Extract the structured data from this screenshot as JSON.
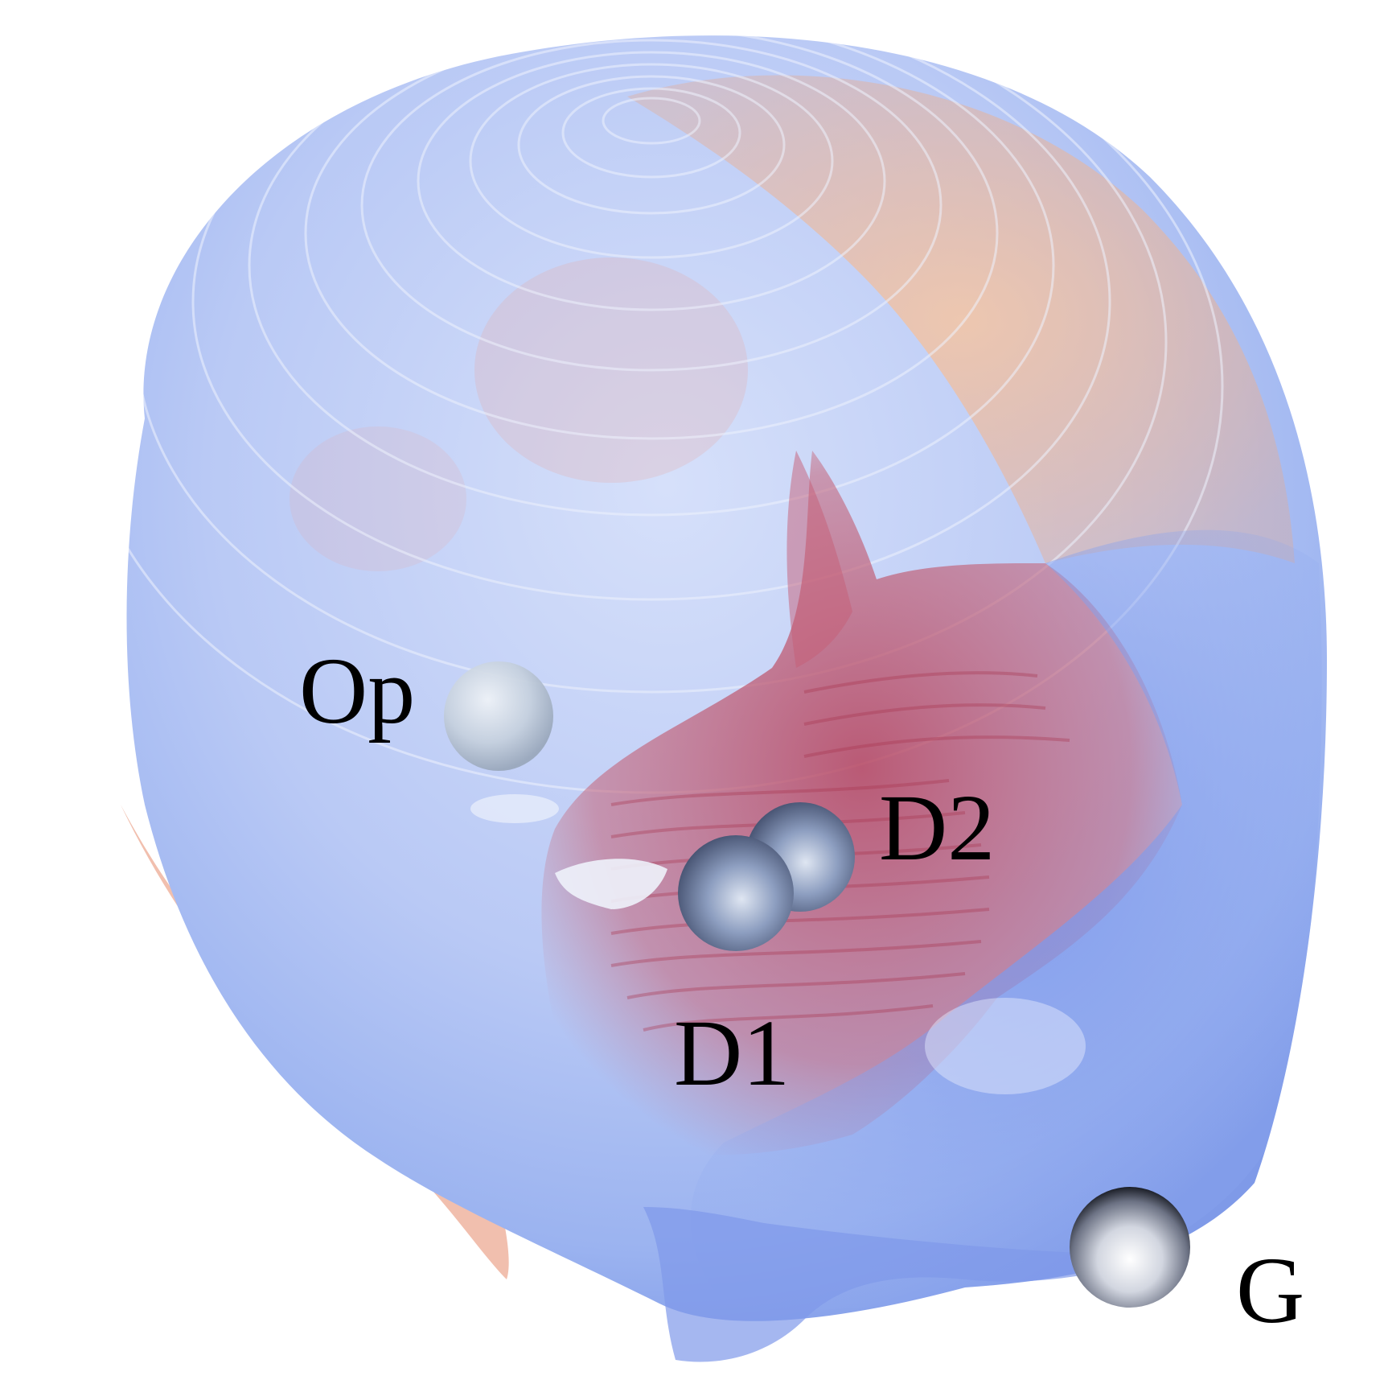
{
  "colors": {
    "background": "#ffffff",
    "skull_blue": "#8aa6f0",
    "skull_light": "#c6d3f7",
    "tissue_red": "#c0506a",
    "tissue_orange": "#e88a5a",
    "marker_sphere": "#9aa8c4",
    "label": "#000000"
  },
  "markers": [
    {
      "id": "Op",
      "label": "Op",
      "icon": "landmark-sphere-icon"
    },
    {
      "id": "D2",
      "label": "D2",
      "icon": "landmark-sphere-icon"
    },
    {
      "id": "D1",
      "label": "D1",
      "icon": "landmark-sphere-icon"
    },
    {
      "id": "G",
      "label": "G",
      "icon": "landmark-sphere-icon"
    }
  ]
}
